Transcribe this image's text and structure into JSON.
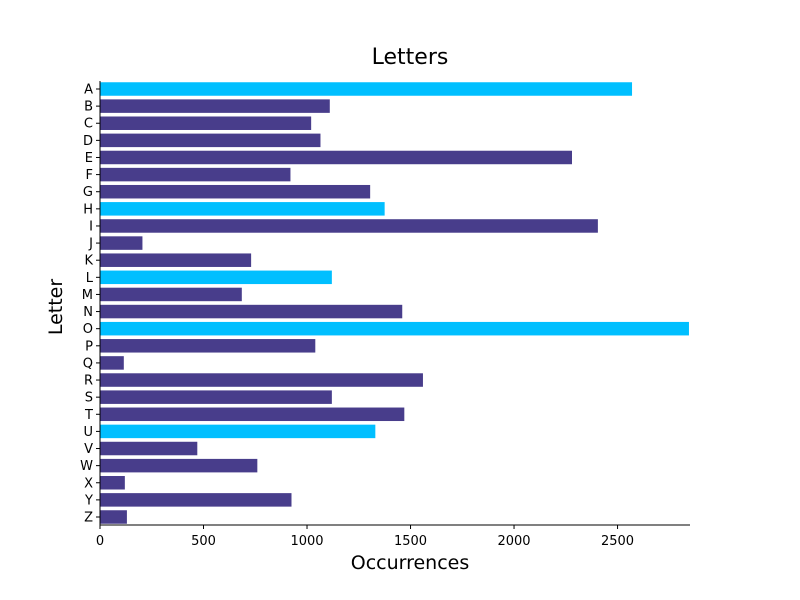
{
  "chart_data": {
    "type": "bar",
    "orientation": "horizontal",
    "title": "Letters",
    "xlabel": "Occurrences",
    "ylabel": "Letter",
    "xlim": [
      0,
      2850
    ],
    "xticks": [
      0,
      500,
      1000,
      1500,
      2000,
      2500
    ],
    "grid": false,
    "legend": "none",
    "categories": [
      "A",
      "B",
      "C",
      "D",
      "E",
      "F",
      "G",
      "H",
      "I",
      "J",
      "K",
      "L",
      "M",
      "N",
      "O",
      "P",
      "Q",
      "R",
      "S",
      "T",
      "U",
      "V",
      "W",
      "X",
      "Y",
      "Z"
    ],
    "values": [
      2570,
      1110,
      1020,
      1065,
      2280,
      920,
      1305,
      1375,
      2405,
      205,
      730,
      1120,
      685,
      1460,
      2845,
      1040,
      115,
      1560,
      1120,
      1470,
      1330,
      470,
      760,
      120,
      925,
      130
    ],
    "highlighted": [
      "A",
      "H",
      "L",
      "O",
      "U"
    ],
    "colors": {
      "default": "#483D8B",
      "highlight": "#00BFFF"
    }
  }
}
